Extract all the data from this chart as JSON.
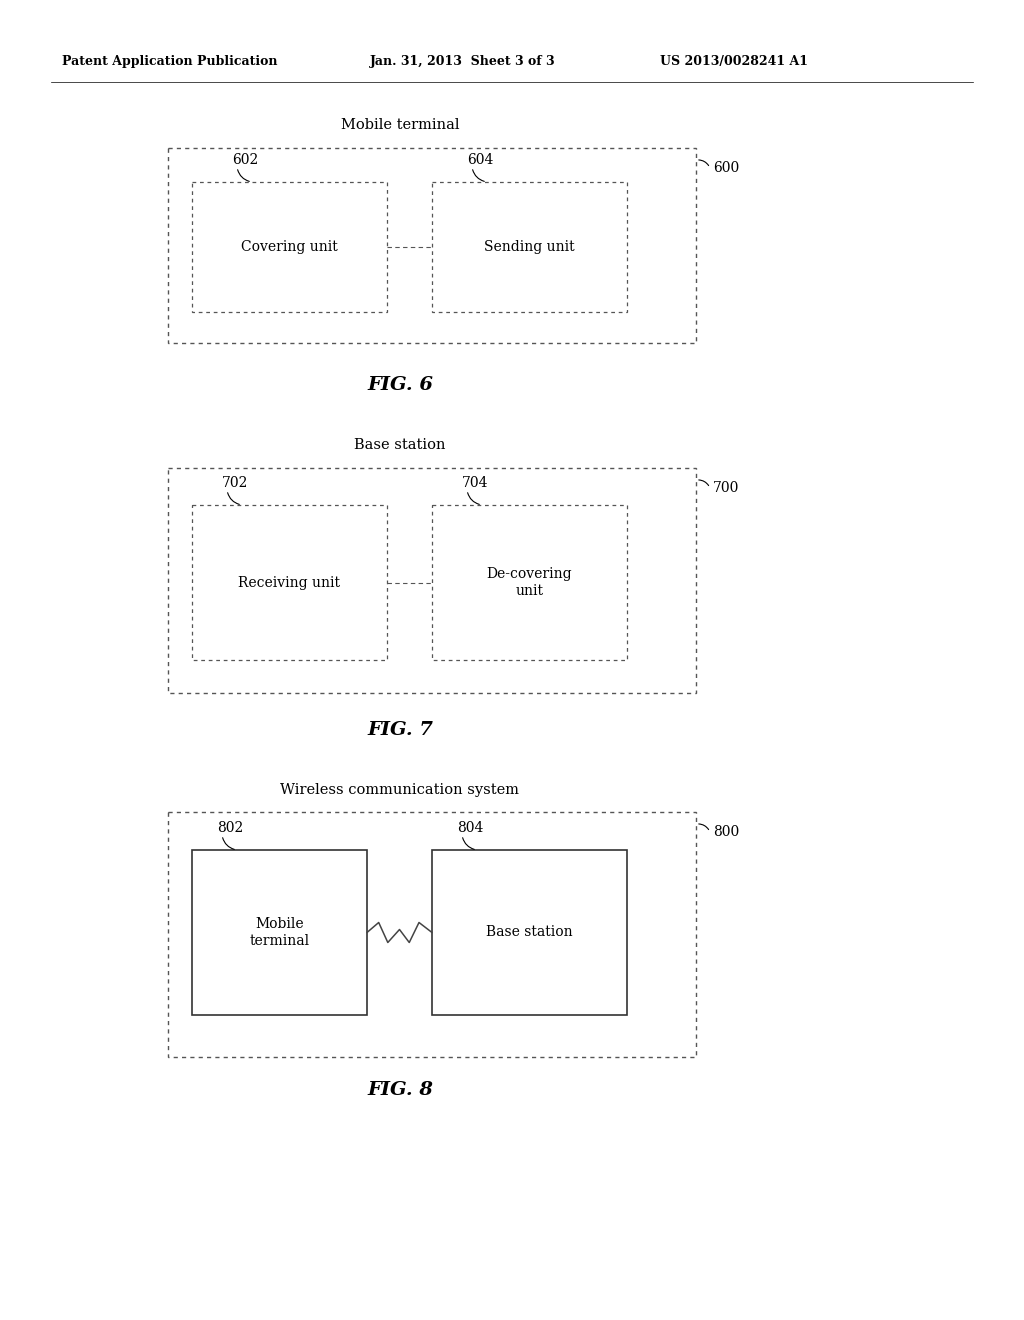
{
  "bg_color": "#ffffff",
  "header_left": "Patent Application Publication",
  "header_mid": "Jan. 31, 2013  Sheet 3 of 3",
  "header_right": "US 2013/0028241 A1",
  "fig6": {
    "title": "Mobile terminal",
    "outer_label": "600",
    "box1_label": "602",
    "box1_text": "Covering unit",
    "box2_label": "604",
    "box2_text": "Sending unit",
    "fig_label": "FIG. 6"
  },
  "fig7": {
    "title": "Base station",
    "outer_label": "700",
    "box1_label": "702",
    "box1_text": "Receiving unit",
    "box2_label": "704",
    "box2_text": "De-covering\nunit",
    "fig_label": "FIG. 7"
  },
  "fig8": {
    "title": "Wireless communication system",
    "outer_label": "800",
    "box1_label": "802",
    "box1_text": "Mobile\nterminal",
    "box2_label": "804",
    "box2_text": "Base station",
    "fig_label": "FIG. 8"
  }
}
